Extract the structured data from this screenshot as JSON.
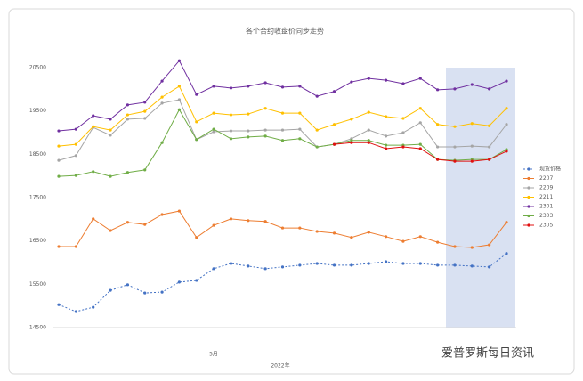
{
  "chart_data": {
    "type": "line",
    "title": "各个合约收盘价同步走势",
    "categories": [
      null,
      null,
      null,
      null,
      null,
      null,
      null,
      null,
      null,
      null,
      null,
      null,
      null,
      null,
      null,
      null,
      null,
      null,
      null,
      null,
      null,
      null,
      null,
      null,
      null,
      null,
      null
    ],
    "x_group_labels": [
      "5月",
      "2022年"
    ],
    "watermark": "爱普罗斯每日资讯",
    "ylim": [
      14500,
      20500
    ],
    "yticks": [
      14500,
      15500,
      16500,
      17500,
      18500,
      19500,
      20500
    ],
    "grid": false,
    "legend": "right",
    "series": [
      {
        "name": "现货价格",
        "color": "#4472c4",
        "dashed": true,
        "values": [
          15030,
          14870,
          14970,
          15360,
          15490,
          15300,
          15320,
          15550,
          15590,
          15860,
          15980,
          15920,
          15860,
          15900,
          15940,
          15980,
          15940,
          15940,
          15980,
          16020,
          15980,
          15980,
          15940,
          15940,
          15920,
          15900,
          16210
        ]
      },
      {
        "name": "2207",
        "color": "#ed7d31",
        "values": [
          16370,
          16370,
          17010,
          16740,
          16930,
          16880,
          17110,
          17190,
          16580,
          16860,
          17010,
          16970,
          16950,
          16800,
          16800,
          16720,
          16680,
          16580,
          16700,
          16600,
          16490,
          16600,
          16470,
          16370,
          16350,
          16410,
          16930
        ]
      },
      {
        "name": "2209",
        "color": "#a5a5a5",
        "values": [
          18360,
          18470,
          19120,
          18940,
          19310,
          19330,
          19680,
          19760,
          18840,
          19020,
          19040,
          19040,
          19060,
          19060,
          19080,
          18670,
          18730,
          18860,
          19060,
          18920,
          19000,
          19230,
          18670,
          18670,
          18690,
          18670,
          19190
        ]
      },
      {
        "name": "2211",
        "color": "#ffc000",
        "values": [
          18690,
          18730,
          19140,
          19060,
          19410,
          19490,
          19820,
          20070,
          19250,
          19450,
          19410,
          19430,
          19560,
          19450,
          19450,
          19060,
          19190,
          19310,
          19470,
          19370,
          19330,
          19560,
          19190,
          19140,
          19210,
          19160,
          19560
        ]
      },
      {
        "name": "2301",
        "color": "#7030a0",
        "values": [
          19040,
          19080,
          19390,
          19310,
          19640,
          19700,
          20190,
          20660,
          19880,
          20070,
          20030,
          20070,
          20150,
          20050,
          20070,
          19840,
          19950,
          20170,
          20250,
          20210,
          20130,
          20250,
          19990,
          20010,
          20110,
          20010,
          20190
        ]
      },
      {
        "name": "2303",
        "color": "#70ad47",
        "values": [
          17990,
          18010,
          18100,
          17990,
          18080,
          18140,
          18770,
          19530,
          18840,
          19080,
          18860,
          18900,
          18920,
          18820,
          18860,
          18670,
          18730,
          18820,
          18820,
          18710,
          18710,
          18730,
          18380,
          18360,
          18380,
          18380,
          18610
        ]
      },
      {
        "name": "2305",
        "color": "#e01010",
        "values": [
          null,
          null,
          null,
          null,
          null,
          null,
          null,
          null,
          null,
          null,
          null,
          null,
          null,
          null,
          null,
          null,
          18730,
          18770,
          18770,
          18630,
          18670,
          18630,
          18380,
          18340,
          18340,
          18380,
          18570
        ]
      }
    ]
  }
}
